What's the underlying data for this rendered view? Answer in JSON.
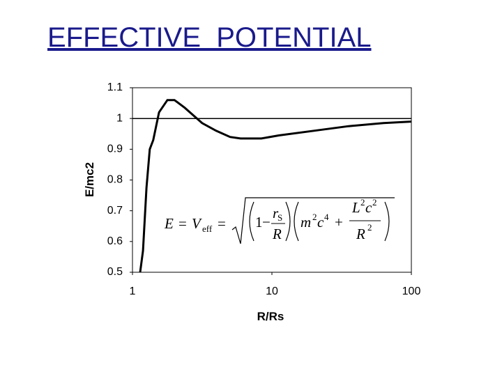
{
  "chart_data": {
    "type": "line",
    "title": "EFFECTIVE  POTENTIAL",
    "x_label": "R/Rs",
    "y_label": "E/mc2",
    "xscale": "log",
    "grid": false,
    "xlim": [
      1,
      100
    ],
    "xticks": [
      1,
      10,
      100
    ],
    "ylim": [
      0.5,
      1.1
    ],
    "yticks": [
      0.5,
      0.6,
      0.7,
      0.8,
      0.9,
      1,
      1.1
    ],
    "series": [
      {
        "color": "#000000",
        "x": [
          1.135,
          1.19,
          1.26,
          1.33,
          1.41,
          1.55,
          1.78,
          2.0,
          2.37,
          3.16,
          3.98,
          5.01,
          5.96,
          8.4,
          11.2,
          20,
          35.5,
          63,
          100
        ],
        "values": [
          0.5,
          0.57,
          0.775,
          0.9,
          0.93,
          1.02,
          1.06,
          1.06,
          1.035,
          0.985,
          0.96,
          0.94,
          0.935,
          0.935,
          0.945,
          0.96,
          0.975,
          0.985,
          0.99
        ]
      },
      {
        "color": "#000000",
        "x": [
          1,
          100
        ],
        "values": [
          1,
          1
        ]
      }
    ],
    "formula": [
      "E",
      "=",
      "V",
      "eff",
      "=",
      "1",
      "−",
      "r",
      "S",
      "R",
      "m",
      "2",
      "c",
      "4",
      "+",
      "L",
      "2",
      "c",
      "2",
      "R",
      "2"
    ]
  }
}
